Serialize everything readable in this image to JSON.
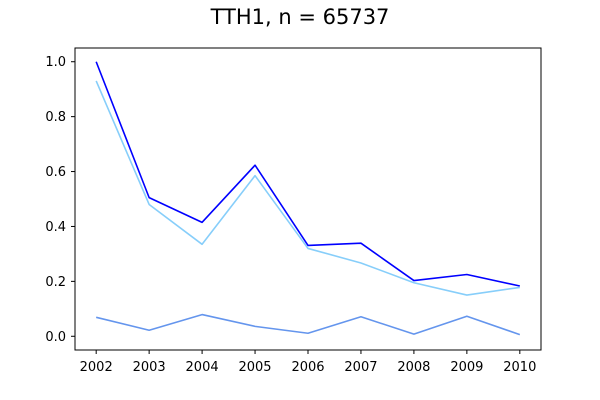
{
  "chart_data": {
    "type": "line",
    "title": "TTH1, n = 65737",
    "xlabel": "",
    "ylabel": "",
    "x": [
      2002,
      2003,
      2004,
      2005,
      2006,
      2007,
      2008,
      2009,
      2010
    ],
    "xlim": [
      2001.6,
      2010.4
    ],
    "ylim": [
      -0.05,
      1.05
    ],
    "y_ticks": [
      0.0,
      0.2,
      0.4,
      0.6,
      0.8,
      1.0
    ],
    "grid": false,
    "series": [
      {
        "color": "#0000ff",
        "values": [
          1.0,
          0.505,
          0.415,
          0.623,
          0.331,
          0.339,
          0.203,
          0.225,
          0.183
        ]
      },
      {
        "color": "#87cefa",
        "values": [
          0.93,
          0.48,
          0.335,
          0.585,
          0.32,
          0.267,
          0.195,
          0.15,
          0.178
        ]
      },
      {
        "color": "#6495ed",
        "values": [
          0.069,
          0.022,
          0.079,
          0.036,
          0.011,
          0.071,
          0.008,
          0.073,
          0.006
        ]
      }
    ]
  }
}
